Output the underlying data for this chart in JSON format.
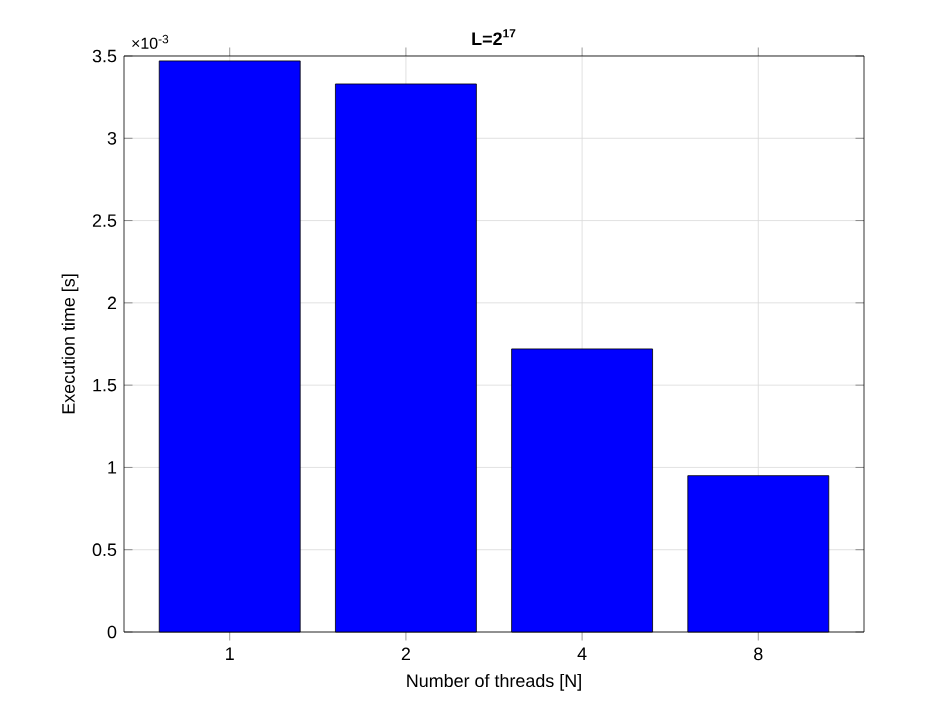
{
  "chart_data": {
    "type": "bar",
    "title": "L=2$^{17}$",
    "xlabel": "Number of threads [N]",
    "ylabel": "Execution time [s]",
    "categories": [
      "1",
      "2",
      "4",
      "8"
    ],
    "values": [
      3.47,
      3.33,
      1.72,
      0.95
    ],
    "color": "#0000ff",
    "ylim": [
      0,
      3.5
    ],
    "yticks": [
      0,
      0.5,
      1,
      1.5,
      2,
      2.5,
      3,
      3.5
    ],
    "grid": true,
    "annotations": [
      "×10$^{-3}$"
    ]
  }
}
